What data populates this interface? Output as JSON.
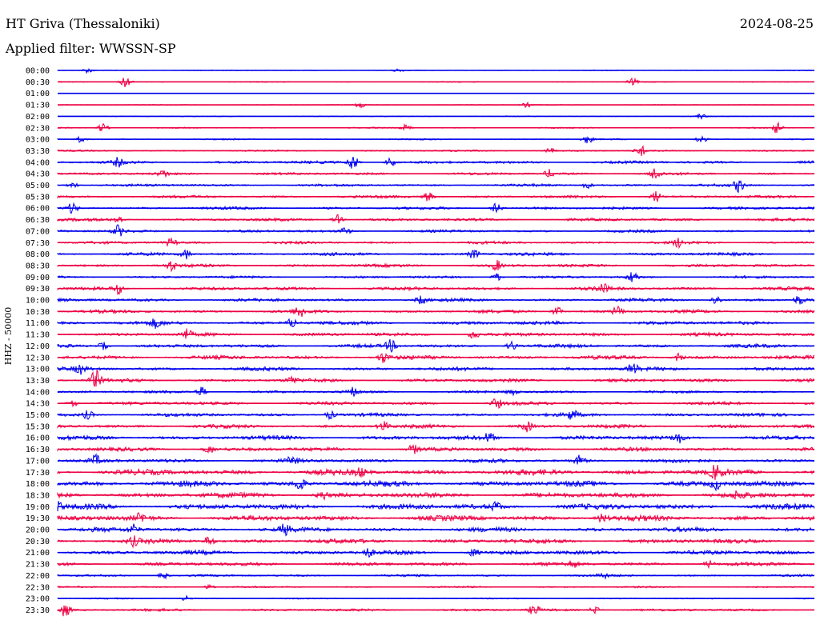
{
  "header": {
    "station": "HT Griva (Thessaloniki)",
    "date": "2024-08-25",
    "filter": "Applied filter: WWSSN-SP"
  },
  "chart_data": {
    "type": "line",
    "title": "HT Griva (Thessaloniki)",
    "subtitle": "Applied filter: WWSSN-SP",
    "ylabel": "HHZ - 50000",
    "date": "2024-08-25",
    "colors": [
      "#0000ee",
      "#ee0044"
    ],
    "traces": [
      {
        "label": "00:00",
        "level": 0.6,
        "bursts": [
          [
            0.04,
            3
          ],
          [
            0.45,
            2
          ]
        ]
      },
      {
        "label": "00:30",
        "level": 0.7,
        "bursts": [
          [
            0.09,
            8
          ],
          [
            0.76,
            4
          ]
        ]
      },
      {
        "label": "01:00",
        "level": 0.3,
        "bursts": []
      },
      {
        "label": "01:30",
        "level": 0.6,
        "bursts": [
          [
            0.4,
            4
          ],
          [
            0.62,
            3
          ]
        ]
      },
      {
        "label": "02:00",
        "level": 0.6,
        "bursts": [
          [
            0.85,
            3
          ]
        ]
      },
      {
        "label": "02:30",
        "level": 0.9,
        "bursts": [
          [
            0.06,
            6
          ],
          [
            0.46,
            4
          ],
          [
            0.95,
            7
          ]
        ]
      },
      {
        "label": "03:00",
        "level": 1.0,
        "bursts": [
          [
            0.03,
            4
          ],
          [
            0.7,
            5
          ],
          [
            0.85,
            5
          ]
        ]
      },
      {
        "label": "03:30",
        "level": 1.2,
        "bursts": [
          [
            0.65,
            4
          ],
          [
            0.77,
            7
          ]
        ]
      },
      {
        "label": "04:00",
        "level": 2.0,
        "bursts": [
          [
            0.08,
            5
          ],
          [
            0.39,
            10
          ],
          [
            0.44,
            6
          ]
        ]
      },
      {
        "label": "04:30",
        "level": 1.8,
        "bursts": [
          [
            0.14,
            4
          ],
          [
            0.65,
            5
          ],
          [
            0.79,
            8
          ]
        ]
      },
      {
        "label": "05:00",
        "level": 1.8,
        "bursts": [
          [
            0.02,
            4
          ],
          [
            0.7,
            4
          ],
          [
            0.9,
            8
          ]
        ]
      },
      {
        "label": "05:30",
        "level": 1.9,
        "bursts": [
          [
            0.49,
            6
          ],
          [
            0.79,
            7
          ]
        ]
      },
      {
        "label": "06:00",
        "level": 2.0,
        "bursts": [
          [
            0.02,
            7
          ],
          [
            0.58,
            6
          ]
        ]
      },
      {
        "label": "06:30",
        "level": 2.1,
        "bursts": [
          [
            0.08,
            5
          ],
          [
            0.37,
            6
          ]
        ]
      },
      {
        "label": "07:00",
        "level": 1.9,
        "bursts": [
          [
            0.08,
            7
          ],
          [
            0.38,
            4
          ]
        ]
      },
      {
        "label": "07:30",
        "level": 2.0,
        "bursts": [
          [
            0.15,
            5
          ],
          [
            0.82,
            5
          ]
        ]
      },
      {
        "label": "08:00",
        "level": 2.2,
        "bursts": [
          [
            0.17,
            6
          ],
          [
            0.55,
            6
          ]
        ]
      },
      {
        "label": "08:30",
        "level": 2.2,
        "bursts": [
          [
            0.15,
            6
          ],
          [
            0.58,
            6
          ]
        ]
      },
      {
        "label": "09:00",
        "level": 1.8,
        "bursts": [
          [
            0.58,
            5
          ],
          [
            0.76,
            7
          ]
        ]
      },
      {
        "label": "09:30",
        "level": 2.4,
        "bursts": [
          [
            0.08,
            6
          ],
          [
            0.72,
            6
          ]
        ]
      },
      {
        "label": "10:00",
        "level": 2.3,
        "bursts": [
          [
            0.48,
            5
          ],
          [
            0.87,
            6
          ],
          [
            0.98,
            6
          ]
        ]
      },
      {
        "label": "10:30",
        "level": 2.4,
        "bursts": [
          [
            0.32,
            7
          ],
          [
            0.66,
            6
          ],
          [
            0.74,
            6
          ]
        ]
      },
      {
        "label": "11:00",
        "level": 2.6,
        "bursts": [
          [
            0.13,
            5
          ],
          [
            0.31,
            6
          ]
        ]
      },
      {
        "label": "11:30",
        "level": 2.5,
        "bursts": [
          [
            0.17,
            6
          ],
          [
            0.55,
            6
          ]
        ]
      },
      {
        "label": "12:00",
        "level": 2.5,
        "bursts": [
          [
            0.06,
            5
          ],
          [
            0.44,
            7
          ],
          [
            0.6,
            6
          ]
        ]
      },
      {
        "label": "12:30",
        "level": 2.8,
        "bursts": [
          [
            0.43,
            6
          ],
          [
            0.82,
            5
          ]
        ]
      },
      {
        "label": "13:00",
        "level": 2.6,
        "bursts": [
          [
            0.03,
            5
          ],
          [
            0.76,
            7
          ]
        ]
      },
      {
        "label": "13:30",
        "level": 2.5,
        "bursts": [
          [
            0.05,
            12
          ],
          [
            0.31,
            4
          ]
        ]
      },
      {
        "label": "14:00",
        "level": 1.9,
        "bursts": [
          [
            0.19,
            6
          ],
          [
            0.39,
            5
          ],
          [
            0.6,
            4
          ]
        ]
      },
      {
        "label": "14:30",
        "level": 2.4,
        "bursts": [
          [
            0.02,
            5
          ],
          [
            0.58,
            6
          ]
        ]
      },
      {
        "label": "15:00",
        "level": 2.4,
        "bursts": [
          [
            0.04,
            5
          ],
          [
            0.36,
            5
          ],
          [
            0.68,
            6
          ]
        ]
      },
      {
        "label": "15:30",
        "level": 2.6,
        "bursts": [
          [
            0.43,
            6
          ],
          [
            0.62,
            6
          ]
        ]
      },
      {
        "label": "16:00",
        "level": 3.0,
        "bursts": [
          [
            0.57,
            6
          ],
          [
            0.82,
            6
          ]
        ]
      },
      {
        "label": "16:30",
        "level": 2.8,
        "bursts": [
          [
            0.2,
            5
          ],
          [
            0.47,
            5
          ]
        ]
      },
      {
        "label": "17:00",
        "level": 2.7,
        "bursts": [
          [
            0.05,
            6
          ],
          [
            0.31,
            5
          ],
          [
            0.69,
            6
          ]
        ]
      },
      {
        "label": "17:30",
        "level": 4.0,
        "bursts": [
          [
            0.4,
            5
          ],
          [
            0.87,
            8
          ]
        ]
      },
      {
        "label": "18:00",
        "level": 4.0,
        "bursts": [
          [
            0.32,
            8
          ],
          [
            0.87,
            6
          ]
        ]
      },
      {
        "label": "18:30",
        "level": 3.8,
        "bursts": [
          [
            0.35,
            5
          ],
          [
            0.9,
            5
          ]
        ]
      },
      {
        "label": "19:00",
        "level": 4.0,
        "bursts": [
          [
            0.0,
            5
          ],
          [
            0.58,
            5
          ]
        ]
      },
      {
        "label": "19:30",
        "level": 3.8,
        "bursts": [
          [
            0.11,
            5
          ],
          [
            0.72,
            5
          ]
        ]
      },
      {
        "label": "20:00",
        "level": 3.2,
        "bursts": [
          [
            0.1,
            6
          ],
          [
            0.3,
            6
          ]
        ]
      },
      {
        "label": "20:30",
        "level": 3.2,
        "bursts": [
          [
            0.1,
            5
          ],
          [
            0.2,
            6
          ]
        ]
      },
      {
        "label": "21:00",
        "level": 3.0,
        "bursts": [
          [
            0.41,
            5
          ],
          [
            0.55,
            5
          ]
        ]
      },
      {
        "label": "21:30",
        "level": 2.6,
        "bursts": [
          [
            0.68,
            4
          ],
          [
            0.86,
            4
          ]
        ]
      },
      {
        "label": "22:00",
        "level": 1.6,
        "bursts": [
          [
            0.14,
            4
          ],
          [
            0.72,
            3
          ]
        ]
      },
      {
        "label": "22:30",
        "level": 1.2,
        "bursts": [
          [
            0.2,
            3
          ]
        ]
      },
      {
        "label": "23:00",
        "level": 0.9,
        "bursts": [
          [
            0.17,
            3
          ]
        ]
      },
      {
        "label": "23:30",
        "level": 1.8,
        "bursts": [
          [
            0.01,
            8
          ],
          [
            0.63,
            7
          ],
          [
            0.71,
            5
          ]
        ]
      }
    ]
  }
}
